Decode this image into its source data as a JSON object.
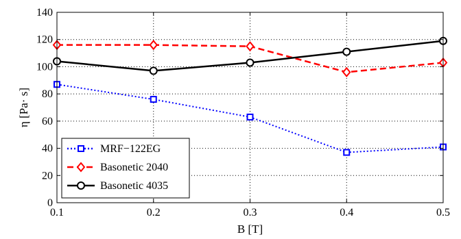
{
  "chart_data": {
    "type": "line",
    "xlabel": "B [T]",
    "ylabel": "η [Pa· s]",
    "xlim": [
      0.1,
      0.5
    ],
    "ylim": [
      0,
      140
    ],
    "x": [
      0.1,
      0.2,
      0.3,
      0.4,
      0.5
    ],
    "xticks": [
      "0.1",
      "0.2",
      "0.3",
      "0.4",
      "0.5"
    ],
    "yticks": [
      "0",
      "20",
      "40",
      "60",
      "80",
      "100",
      "120",
      "140"
    ],
    "grid": true,
    "legend_position": "bottom-left",
    "series": [
      {
        "name": "MRF−122EG",
        "values": [
          87,
          76,
          63,
          37,
          41
        ],
        "color": "#0000ff",
        "line_style": "dotted",
        "marker": "square"
      },
      {
        "name": "Basonetic 2040",
        "values": [
          116,
          116,
          115,
          96,
          103
        ],
        "color": "#ff0000",
        "line_style": "dashed",
        "marker": "diamond"
      },
      {
        "name": "Basonetic 4035",
        "values": [
          104,
          97,
          103,
          111,
          119
        ],
        "color": "#000000",
        "line_style": "solid",
        "marker": "circle"
      }
    ]
  }
}
